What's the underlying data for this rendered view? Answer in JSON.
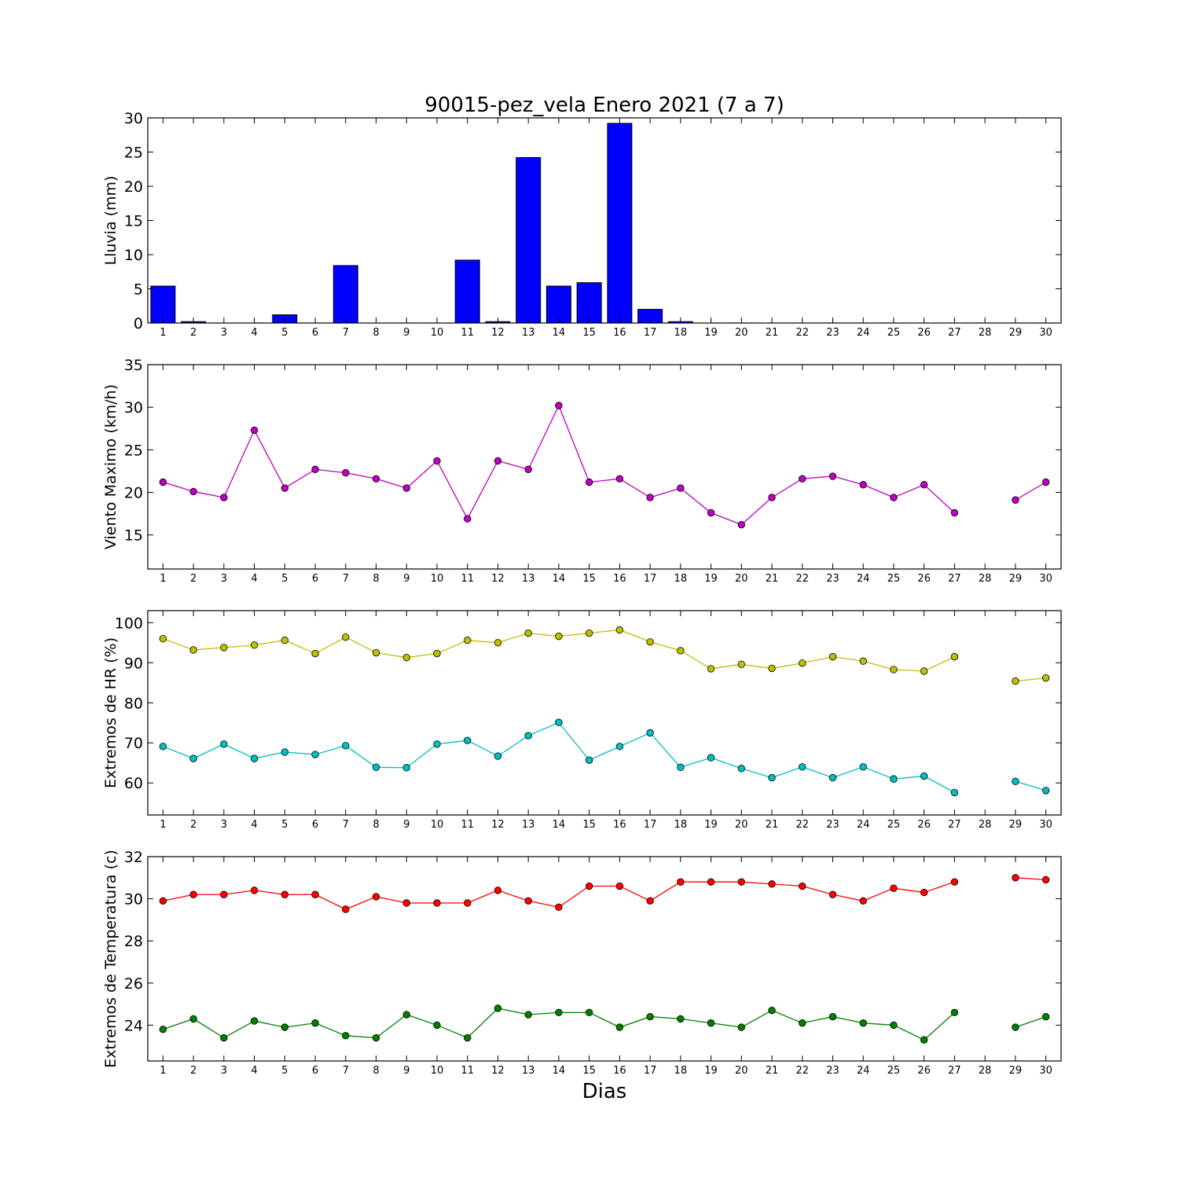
{
  "title": "90015-pez_vela Enero 2021  (7 a 7)",
  "xlabel": "Dias",
  "chart_data": [
    {
      "type": "bar",
      "ylabel": "Lluvia (mm)",
      "ylim": [
        0,
        30
      ],
      "yticks": [
        0,
        5,
        10,
        15,
        20,
        25,
        30
      ],
      "categories": [
        1,
        2,
        3,
        4,
        5,
        6,
        7,
        8,
        9,
        10,
        11,
        12,
        13,
        14,
        15,
        16,
        17,
        18,
        19,
        20,
        21,
        22,
        23,
        24,
        25,
        26,
        27,
        28,
        29,
        30
      ],
      "series": [
        {
          "color": "#0000ff",
          "values": [
            5.4,
            0.2,
            0,
            0,
            1.2,
            0,
            8.4,
            0,
            0,
            0,
            9.2,
            0.2,
            24.2,
            5.4,
            5.9,
            29.2,
            2.0,
            0.2,
            0,
            0,
            0,
            0,
            0,
            0,
            0,
            0,
            0,
            0,
            0,
            0
          ]
        }
      ],
      "grid": false
    },
    {
      "type": "line",
      "ylabel": "Viento Maximo (km/h)",
      "ylim": [
        11,
        35
      ],
      "yticks": [
        15,
        20,
        25,
        30,
        35
      ],
      "categories": [
        1,
        2,
        3,
        4,
        5,
        6,
        7,
        8,
        9,
        10,
        11,
        12,
        13,
        14,
        15,
        16,
        17,
        18,
        19,
        20,
        21,
        22,
        23,
        24,
        25,
        26,
        27,
        28,
        29,
        30
      ],
      "series": [
        {
          "color": "#bf00bf",
          "values": [
            21.2,
            20.1,
            19.4,
            27.3,
            20.5,
            22.7,
            22.3,
            21.6,
            20.5,
            23.7,
            16.9,
            23.7,
            22.7,
            30.2,
            21.2,
            21.6,
            19.4,
            20.5,
            17.6,
            16.2,
            19.4,
            21.6,
            21.9,
            20.9,
            19.4,
            20.9,
            17.6,
            null,
            19.1,
            21.2
          ]
        }
      ],
      "grid": false
    },
    {
      "type": "line",
      "ylabel": "Extremos de HR (%)",
      "ylim": [
        52,
        103
      ],
      "yticks": [
        60,
        70,
        80,
        90,
        100
      ],
      "categories": [
        1,
        2,
        3,
        4,
        5,
        6,
        7,
        8,
        9,
        10,
        11,
        12,
        13,
        14,
        15,
        16,
        17,
        18,
        19,
        20,
        21,
        22,
        23,
        24,
        25,
        26,
        27,
        28,
        29,
        30
      ],
      "series": [
        {
          "color": "#bfbf00",
          "values": [
            96,
            93.2,
            93.8,
            94.4,
            95.6,
            92.3,
            96.4,
            92.5,
            91.3,
            92.3,
            95.6,
            95,
            97.4,
            96.6,
            97.4,
            98.2,
            95.2,
            93,
            88.5,
            89.6,
            88.6,
            89.9,
            91.5,
            90.4,
            88.3,
            87.9,
            91.5,
            null,
            85.4,
            86.2
          ]
        },
        {
          "color": "#00bfbf",
          "values": [
            69.1,
            66.1,
            69.7,
            66.1,
            67.7,
            67.1,
            69.3,
            63.9,
            63.8,
            69.7,
            70.6,
            66.7,
            71.8,
            75.1,
            65.7,
            69.1,
            72.5,
            63.9,
            66.3,
            63.6,
            61.3,
            64,
            61.3,
            64,
            61,
            61.7,
            57.6,
            null,
            60.4,
            58.1
          ]
        }
      ],
      "grid": false
    },
    {
      "type": "line",
      "ylabel": "Extremos de Temperatura (c)",
      "ylim": [
        22.3,
        32
      ],
      "yticks": [
        24,
        26,
        28,
        30,
        32
      ],
      "categories": [
        1,
        2,
        3,
        4,
        5,
        6,
        7,
        8,
        9,
        10,
        11,
        12,
        13,
        14,
        15,
        16,
        17,
        18,
        19,
        20,
        21,
        22,
        23,
        24,
        25,
        26,
        27,
        28,
        29,
        30
      ],
      "series": [
        {
          "color": "#ff0000",
          "values": [
            29.9,
            30.2,
            30.2,
            30.4,
            30.2,
            30.2,
            29.5,
            30.1,
            29.8,
            29.8,
            29.8,
            30.4,
            29.9,
            29.6,
            30.6,
            30.6,
            29.9,
            30.8,
            30.8,
            30.8,
            30.7,
            30.6,
            30.2,
            29.9,
            30.5,
            30.3,
            30.8,
            null,
            31.0,
            30.9
          ]
        },
        {
          "color": "#008000",
          "values": [
            23.8,
            24.3,
            23.4,
            24.2,
            23.9,
            24.1,
            23.5,
            23.4,
            24.5,
            24.0,
            23.4,
            24.8,
            24.5,
            24.6,
            24.6,
            23.9,
            24.4,
            24.3,
            24.1,
            23.9,
            24.7,
            24.1,
            24.4,
            24.1,
            24.0,
            23.3,
            24.6,
            null,
            23.9,
            24.4
          ]
        }
      ],
      "grid": false
    }
  ]
}
